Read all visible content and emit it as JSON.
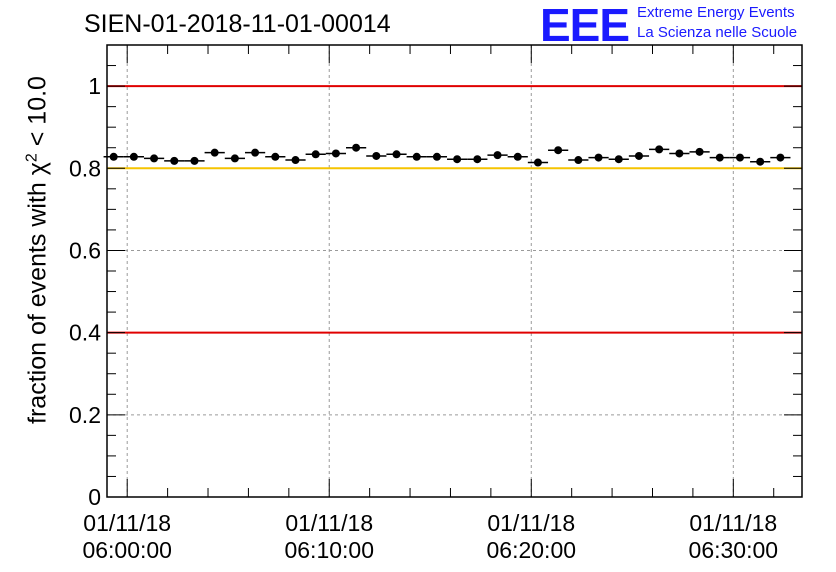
{
  "chart_data": {
    "type": "scatter",
    "title": "SIEN-01-2018-11-01-00014",
    "ylabel_prefix": "fraction of events with ",
    "ylabel_symbol": "χ",
    "ylabel_exp": "2",
    "ylabel_suffix": " < 10.0",
    "ylim": [
      0,
      1.1
    ],
    "xlim_minutes": [
      -1,
      33.4
    ],
    "grid": true,
    "y_ticks": [
      {
        "v": 0,
        "label": "0"
      },
      {
        "v": 0.2,
        "label": "0.2"
      },
      {
        "v": 0.4,
        "label": "0.4"
      },
      {
        "v": 0.6,
        "label": "0.6"
      },
      {
        "v": 0.8,
        "label": "0.8"
      },
      {
        "v": 1,
        "label": "1"
      }
    ],
    "x_ticks": [
      {
        "minute": 0,
        "date": "01/11/18",
        "time": "06:00:00"
      },
      {
        "minute": 10,
        "date": "01/11/18",
        "time": "06:10:00"
      },
      {
        "minute": 20,
        "date": "01/11/18",
        "time": "06:20:00"
      },
      {
        "minute": 30,
        "date": "01/11/18",
        "time": "06:30:00"
      }
    ],
    "reference_lines": [
      {
        "y": 1.0,
        "color": "#e00000"
      },
      {
        "y": 0.8,
        "color": "#f5c400"
      },
      {
        "y": 0.4,
        "color": "#e00000"
      }
    ],
    "points": [
      {
        "x": -0.67,
        "y": 0.828
      },
      {
        "x": 0.33,
        "y": 0.828
      },
      {
        "x": 1.33,
        "y": 0.824
      },
      {
        "x": 2.33,
        "y": 0.818
      },
      {
        "x": 3.33,
        "y": 0.818
      },
      {
        "x": 4.33,
        "y": 0.838
      },
      {
        "x": 5.33,
        "y": 0.824
      },
      {
        "x": 6.33,
        "y": 0.838
      },
      {
        "x": 7.33,
        "y": 0.828
      },
      {
        "x": 8.33,
        "y": 0.82
      },
      {
        "x": 9.33,
        "y": 0.834
      },
      {
        "x": 10.33,
        "y": 0.836
      },
      {
        "x": 11.33,
        "y": 0.85
      },
      {
        "x": 12.33,
        "y": 0.83
      },
      {
        "x": 13.33,
        "y": 0.834
      },
      {
        "x": 14.33,
        "y": 0.828
      },
      {
        "x": 15.33,
        "y": 0.828
      },
      {
        "x": 16.33,
        "y": 0.822
      },
      {
        "x": 17.33,
        "y": 0.822
      },
      {
        "x": 18.33,
        "y": 0.832
      },
      {
        "x": 19.33,
        "y": 0.828
      },
      {
        "x": 20.33,
        "y": 0.814
      },
      {
        "x": 21.33,
        "y": 0.844
      },
      {
        "x": 22.33,
        "y": 0.82
      },
      {
        "x": 23.33,
        "y": 0.826
      },
      {
        "x": 24.33,
        "y": 0.822
      },
      {
        "x": 25.33,
        "y": 0.83
      },
      {
        "x": 26.33,
        "y": 0.846
      },
      {
        "x": 27.33,
        "y": 0.836
      },
      {
        "x": 28.33,
        "y": 0.84
      },
      {
        "x": 29.33,
        "y": 0.826
      },
      {
        "x": 30.33,
        "y": 0.826
      },
      {
        "x": 31.33,
        "y": 0.816
      },
      {
        "x": 32.33,
        "y": 0.826
      }
    ],
    "point_xerr_minutes": 0.5,
    "colors": {
      "points": "#000000",
      "grid": "#9a9a9a",
      "axis": "#000000"
    }
  },
  "logo": {
    "mark": "EEE",
    "line1": "Extreme Energy Events",
    "line2": "La Scienza nelle Scuole",
    "color": "#1a1aff"
  }
}
